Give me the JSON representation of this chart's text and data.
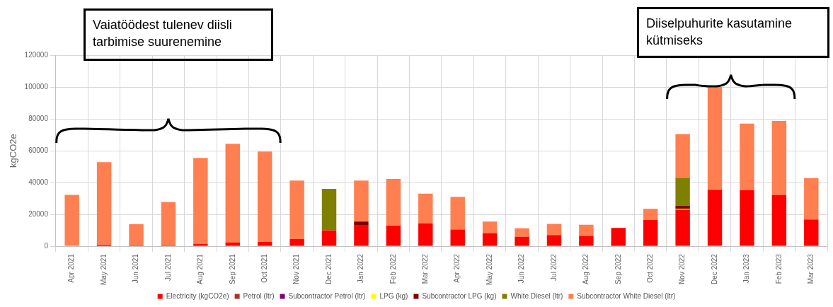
{
  "chart_data": {
    "type": "bar",
    "stacked": true,
    "ylabel": "kgCO2e",
    "categories": [
      "Apr 2021",
      "May 2021",
      "Jun 2021",
      "Jul 2021",
      "Aug 2021",
      "Sep 2021",
      "Oct 2021",
      "Nov 2021",
      "Dec 2021",
      "Jan 2022",
      "Feb 2022",
      "Mar 2022",
      "Apr 2022",
      "May 2022",
      "Jun 2022",
      "Jul 2022",
      "Aug 2022",
      "Sep 2022",
      "Oct 2022",
      "Nov 2022",
      "Dec 2022",
      "Jan 2023",
      "Feb 2023",
      "Mar 2023"
    ],
    "series": [
      {
        "name": "Electricity (kgCO2e)",
        "color": "#ff0000",
        "values": [
          null,
          1000,
          600,
          600,
          1500,
          2300,
          2800,
          4500,
          10000,
          13000,
          13000,
          14300,
          10500,
          8200,
          6000,
          7000,
          6500,
          11500,
          16500,
          23000,
          35500,
          35300,
          32200,
          16800
        ]
      },
      {
        "name": "Petrol (ltr)",
        "color": "#b22c2c",
        "values": [
          null,
          null,
          null,
          null,
          null,
          null,
          null,
          null,
          null,
          null,
          null,
          null,
          null,
          null,
          null,
          null,
          null,
          null,
          null,
          null,
          null,
          null,
          null,
          null
        ]
      },
      {
        "name": "Subcontractor Petrol (ltr)",
        "color": "#800080",
        "values": [
          null,
          null,
          null,
          null,
          null,
          null,
          null,
          null,
          null,
          null,
          null,
          null,
          null,
          null,
          null,
          null,
          null,
          null,
          null,
          null,
          null,
          null,
          null,
          null
        ]
      },
      {
        "name": "LPG (kg)",
        "color": "#ffff00",
        "values": [
          null,
          null,
          null,
          null,
          null,
          null,
          null,
          null,
          null,
          null,
          null,
          null,
          null,
          null,
          null,
          null,
          null,
          null,
          null,
          500,
          null,
          null,
          null,
          null
        ]
      },
      {
        "name": "Subcontractor LPG (kg)",
        "color": "#800000",
        "values": [
          null,
          null,
          null,
          null,
          null,
          null,
          null,
          null,
          null,
          2500,
          null,
          null,
          null,
          null,
          null,
          null,
          null,
          null,
          null,
          2000,
          null,
          null,
          null,
          null
        ]
      },
      {
        "name": "White Diesel (ltr)",
        "color": "#808000",
        "values": [
          null,
          null,
          null,
          null,
          null,
          null,
          null,
          null,
          26000,
          null,
          null,
          null,
          null,
          null,
          null,
          null,
          null,
          null,
          null,
          17500,
          null,
          null,
          null,
          null
        ]
      },
      {
        "name": "Subcontractor White Diesel (ltr)",
        "color": "#ff7f50",
        "values": [
          32200,
          51800,
          13200,
          27200,
          54000,
          62000,
          56700,
          36800,
          null,
          25800,
          29200,
          18700,
          20500,
          7300,
          5300,
          7000,
          7000,
          null,
          7000,
          27500,
          64500,
          41700,
          46500,
          26000
        ]
      }
    ],
    "ylim": [
      0,
      120000
    ],
    "yticks": [
      0,
      20000,
      40000,
      60000,
      80000,
      100000,
      120000
    ],
    "grid": true,
    "legend": "bottom",
    "annotations": [
      "Vaiatöödest tulenev diisli tarbimise suurenemine",
      "Diiselpuhurite kasutamine kütmiseks"
    ]
  }
}
